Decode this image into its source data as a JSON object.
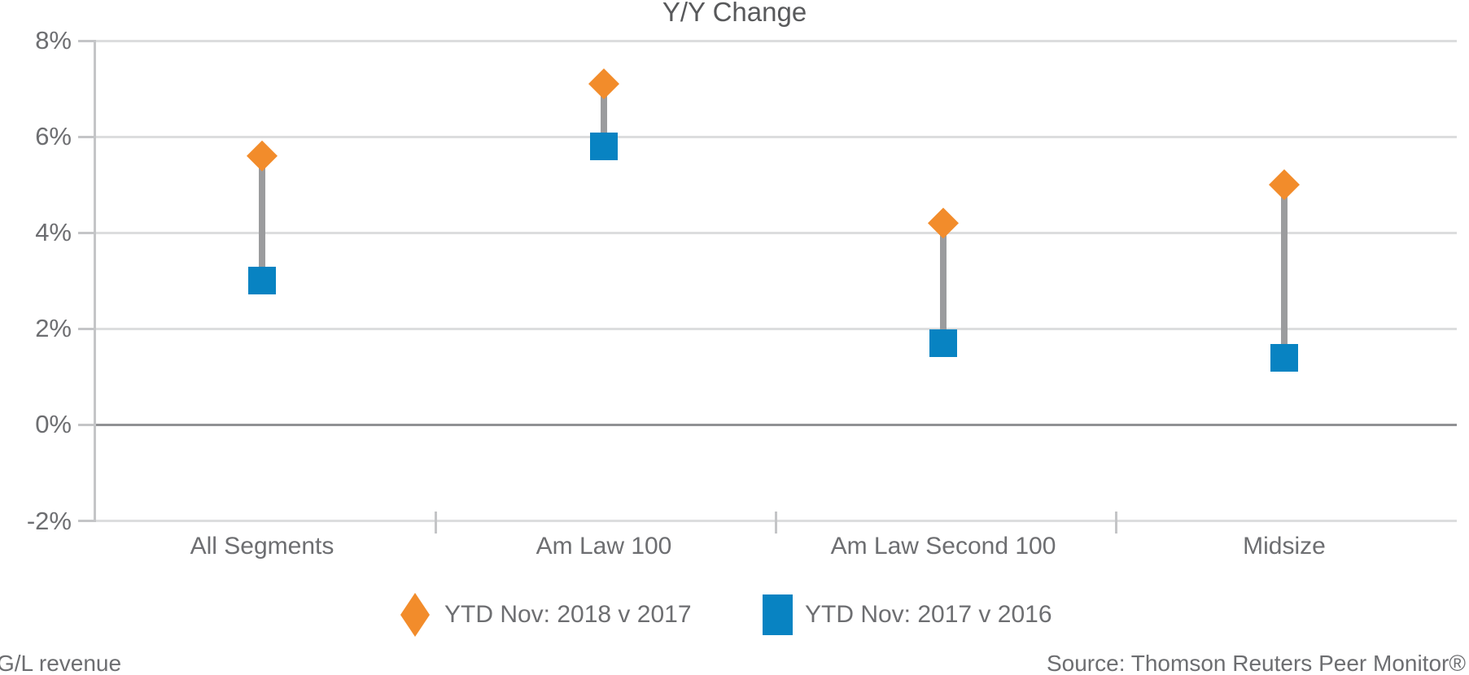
{
  "title": "Y/Y Change",
  "legend": [
    {
      "label": "YTD Nov: 2018 v 2017",
      "marker": "diamond-icon",
      "color": "#F28C2B"
    },
    {
      "label": "YTD Nov: 2017 v 2016",
      "marker": "square-icon",
      "color": "#0883C2"
    }
  ],
  "footer": {
    "left": "G/L revenue",
    "right": "Source: Thomson Reuters Peer Monitor®"
  },
  "colors": {
    "series_2018_orange": "#F28C2B",
    "series_2017_blue": "#0883C2",
    "connector_gray": "#9B9C9E",
    "gridline_light": "#DCDDDE",
    "zero_line": "#909194",
    "axis_line": "#C4C5C7",
    "label_text": "#6D6E71",
    "title_text": "#58595B"
  },
  "chart_data": {
    "type": "dumbbell",
    "title": "Y/Y Change",
    "categories": [
      "All Segments",
      "Am Law 100",
      "Am Law Second 100",
      "Midsize"
    ],
    "series": [
      {
        "name": "YTD Nov: 2018 v 2017",
        "marker": "diamond",
        "color": "#F28C2B",
        "values": [
          5.6,
          7.1,
          4.2,
          5.0
        ]
      },
      {
        "name": "YTD Nov: 2017 v 2016",
        "marker": "square",
        "color": "#0883C2",
        "values": [
          3.0,
          5.8,
          1.7,
          1.4
        ]
      }
    ],
    "xlabel": "",
    "ylabel": "",
    "ylim": [
      -2,
      8
    ],
    "yticks": [
      8,
      6,
      4,
      2,
      0,
      -2
    ],
    "ytick_format": "percent",
    "grid": true,
    "zero_line_emphasized": true,
    "legend_position": "bottom",
    "footnote_left": "G/L revenue",
    "footnote_right": "Source: Thomson Reuters Peer Monitor®"
  }
}
